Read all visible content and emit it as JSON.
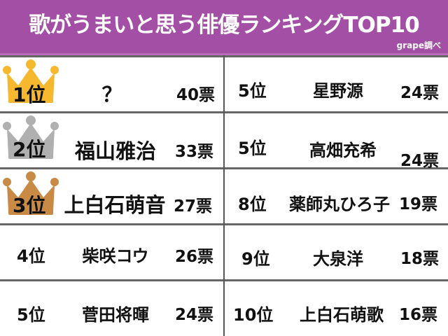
{
  "header": {
    "title": "歌がうまいと思う俳優ランキングTOP10",
    "credit": "grape調べ"
  },
  "colors": {
    "header": "#a34fa5",
    "gold": "#f5b82e",
    "silver": "#b0b0b0",
    "bronze": "#c98a45"
  },
  "left": [
    {
      "rank": "1位",
      "name": "？",
      "votes": "40票",
      "crown": "gold-crown-icon"
    },
    {
      "rank": "2位",
      "name": "福山雅治",
      "votes": "33票",
      "crown": "silver-crown-icon"
    },
    {
      "rank": "3位",
      "name": "上白石萌音",
      "votes": "27票",
      "crown": "bronze-crown-icon"
    },
    {
      "rank": "4位",
      "name": "柴咲コウ",
      "votes": "26票"
    },
    {
      "rank": "5位",
      "name": "菅田将暉",
      "votes": "24票"
    }
  ],
  "right": [
    {
      "rank": "5位",
      "name": "星野源",
      "votes": "24票"
    },
    {
      "rank": "5位",
      "name": "高畑充希",
      "votes": "24票"
    },
    {
      "rank": "8位",
      "name": "薬師丸ひろ子",
      "votes": "19票"
    },
    {
      "rank": "9位",
      "name": "大泉洋",
      "votes": "18票"
    },
    {
      "rank": "10位",
      "name": "上白石萌歌",
      "votes": "16票"
    }
  ]
}
